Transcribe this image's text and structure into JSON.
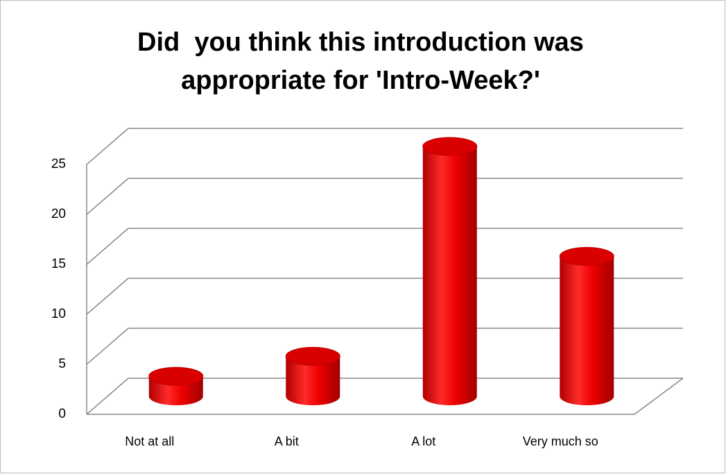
{
  "chart_data": {
    "type": "bar3d",
    "title": [
      "Did  you think this introduction was",
      "appropriate for 'Intro-Week?'"
    ],
    "categories": [
      "Not at all",
      "A bit",
      "A lot",
      "Very much so"
    ],
    "values": [
      2,
      4,
      25,
      14
    ],
    "color": "#e00000",
    "ylim": [
      0,
      25
    ],
    "yticks": [
      0,
      5,
      10,
      15,
      20,
      25
    ],
    "grid": true
  }
}
